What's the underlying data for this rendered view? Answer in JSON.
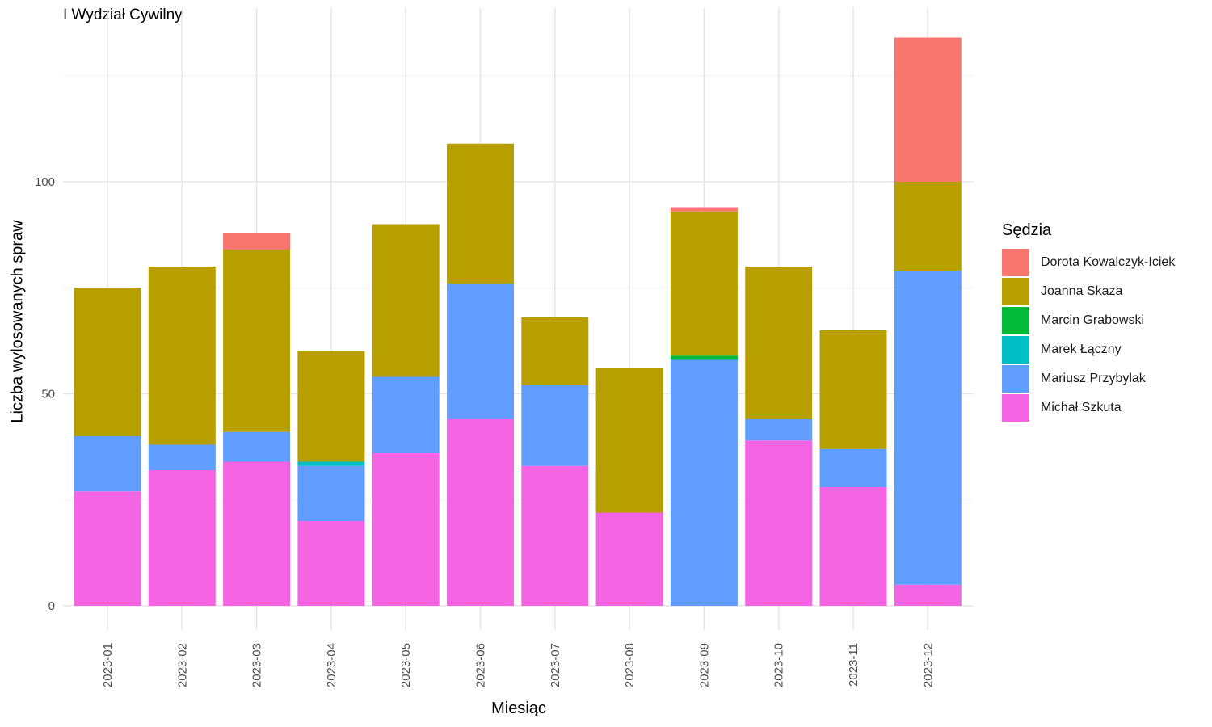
{
  "chart_data": {
    "type": "bar",
    "stacked": true,
    "title": "I Wydział Cywilny",
    "xlabel": "Miesiąc",
    "ylabel": "Liczba wylosowanych spraw",
    "ylim": [
      0,
      134
    ],
    "yticks": [
      0,
      50,
      100
    ],
    "grid": true,
    "legend_title": "Sędzia",
    "legend_position": "right",
    "categories": [
      "2023-01",
      "2023-02",
      "2023-03",
      "2023-04",
      "2023-05",
      "2023-06",
      "2023-07",
      "2023-08",
      "2023-09",
      "2023-10",
      "2023-11",
      "2023-12"
    ],
    "series": [
      {
        "name": "Michał Szkuta",
        "color": "#F564E3",
        "values": [
          27,
          32,
          34,
          20,
          36,
          44,
          33,
          22,
          0,
          39,
          28,
          5
        ]
      },
      {
        "name": "Mariusz Przybylak",
        "color": "#619CFF",
        "values": [
          13,
          6,
          7,
          13,
          18,
          32,
          19,
          0,
          58,
          5,
          9,
          74
        ]
      },
      {
        "name": "Marek Łączny",
        "color": "#00BFC4",
        "values": [
          0,
          0,
          0,
          1,
          0,
          0,
          0,
          0,
          0,
          0,
          0,
          0
        ]
      },
      {
        "name": "Marcin Grabowski",
        "color": "#00BA38",
        "values": [
          0,
          0,
          0,
          0,
          0,
          0,
          0,
          0,
          1,
          0,
          0,
          0
        ]
      },
      {
        "name": "Joanna Skaza",
        "color": "#B79F00",
        "values": [
          35,
          42,
          43,
          26,
          36,
          33,
          16,
          34,
          34,
          36,
          28,
          21
        ]
      },
      {
        "name": "Dorota Kowalczyk-Iciek",
        "color": "#F8766D",
        "values": [
          0,
          0,
          4,
          0,
          0,
          0,
          0,
          0,
          1,
          0,
          0,
          34
        ]
      }
    ],
    "legend_order": [
      "Dorota Kowalczyk-Iciek",
      "Joanna Skaza",
      "Marcin Grabowski",
      "Marek Łączny",
      "Mariusz Przybylak",
      "Michał Szkuta"
    ]
  }
}
